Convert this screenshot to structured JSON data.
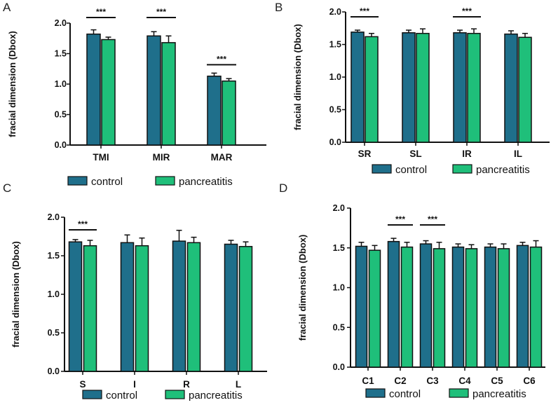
{
  "colors": {
    "control": "#1f6f8b",
    "pancreatitis": "#1fbf7a",
    "axis": "#111111"
  },
  "chart_data": [
    {
      "id": "A",
      "letter": "A",
      "type": "bar",
      "title": "",
      "xlabel": "",
      "ylabel": "fracial dimension (Dbox)",
      "ylim": [
        0,
        2.0
      ],
      "yticks": [
        "0.0",
        "0.5",
        "1.0",
        "1.5",
        "2.0"
      ],
      "categories": [
        "TMI",
        "MIR",
        "MAR"
      ],
      "series": [
        {
          "name": "control",
          "values": [
            1.82,
            1.79,
            1.13
          ],
          "errors": [
            0.07,
            0.07,
            0.05
          ]
        },
        {
          "name": "pancreatitis",
          "values": [
            1.73,
            1.68,
            1.05
          ],
          "errors": [
            0.04,
            0.11,
            0.04
          ]
        }
      ],
      "significance": [
        {
          "category_index": 0,
          "label": "***"
        },
        {
          "category_index": 1,
          "label": "***"
        },
        {
          "category_index": 2,
          "label": "***"
        }
      ],
      "legend": [
        "control",
        "pancreatitis"
      ]
    },
    {
      "id": "B",
      "letter": "B",
      "type": "bar",
      "title": "",
      "xlabel": "",
      "ylabel": "fracial dimension (Dbox)",
      "ylim": [
        0,
        2.0
      ],
      "yticks": [
        "0.0",
        "0.5",
        "1.0",
        "1.5",
        "2.0"
      ],
      "categories": [
        "SR",
        "SL",
        "IR",
        "IL"
      ],
      "series": [
        {
          "name": "control",
          "values": [
            1.69,
            1.68,
            1.68,
            1.66
          ],
          "errors": [
            0.03,
            0.04,
            0.04,
            0.05
          ]
        },
        {
          "name": "pancreatitis",
          "values": [
            1.62,
            1.67,
            1.67,
            1.61
          ],
          "errors": [
            0.05,
            0.07,
            0.07,
            0.06
          ]
        }
      ],
      "significance": [
        {
          "category_index": 0,
          "label": "***"
        },
        {
          "category_index": 2,
          "label": "***"
        }
      ],
      "legend": [
        "control",
        "pancreatitis"
      ]
    },
    {
      "id": "C",
      "letter": "C",
      "type": "bar",
      "title": "",
      "xlabel": "",
      "ylabel": "fracial dimension (Dbox)",
      "ylim": [
        0,
        2.0
      ],
      "yticks": [
        "0.0",
        "0.5",
        "1.0",
        "1.5",
        "2.0"
      ],
      "categories": [
        "S",
        "I",
        "R",
        "L"
      ],
      "series": [
        {
          "name": "control",
          "values": [
            1.68,
            1.67,
            1.69,
            1.65
          ],
          "errors": [
            0.03,
            0.1,
            0.14,
            0.05
          ]
        },
        {
          "name": "pancreatitis",
          "values": [
            1.63,
            1.63,
            1.67,
            1.62
          ],
          "errors": [
            0.07,
            0.1,
            0.07,
            0.06
          ]
        }
      ],
      "significance": [
        {
          "category_index": 0,
          "label": "***"
        }
      ],
      "legend": [
        "control",
        "pancreatitis"
      ]
    },
    {
      "id": "D",
      "letter": "D",
      "type": "bar",
      "title": "",
      "xlabel": "",
      "ylabel": "fracial dimension (Dbox)",
      "ylim": [
        0,
        2.0
      ],
      "yticks": [
        "0.0",
        "0.5",
        "1.0",
        "1.5",
        "2.0"
      ],
      "categories": [
        "C1",
        "C2",
        "C3",
        "C4",
        "C5",
        "C6"
      ],
      "series": [
        {
          "name": "control",
          "values": [
            1.52,
            1.58,
            1.55,
            1.51,
            1.51,
            1.53
          ],
          "errors": [
            0.05,
            0.04,
            0.04,
            0.04,
            0.04,
            0.04
          ]
        },
        {
          "name": "pancreatitis",
          "values": [
            1.47,
            1.51,
            1.49,
            1.49,
            1.49,
            1.51
          ],
          "errors": [
            0.06,
            0.06,
            0.08,
            0.05,
            0.06,
            0.08
          ]
        }
      ],
      "significance": [
        {
          "category_index": 1,
          "label": "***"
        },
        {
          "category_index": 2,
          "label": "***"
        }
      ],
      "legend": [
        "control",
        "pancreatitis"
      ]
    }
  ]
}
